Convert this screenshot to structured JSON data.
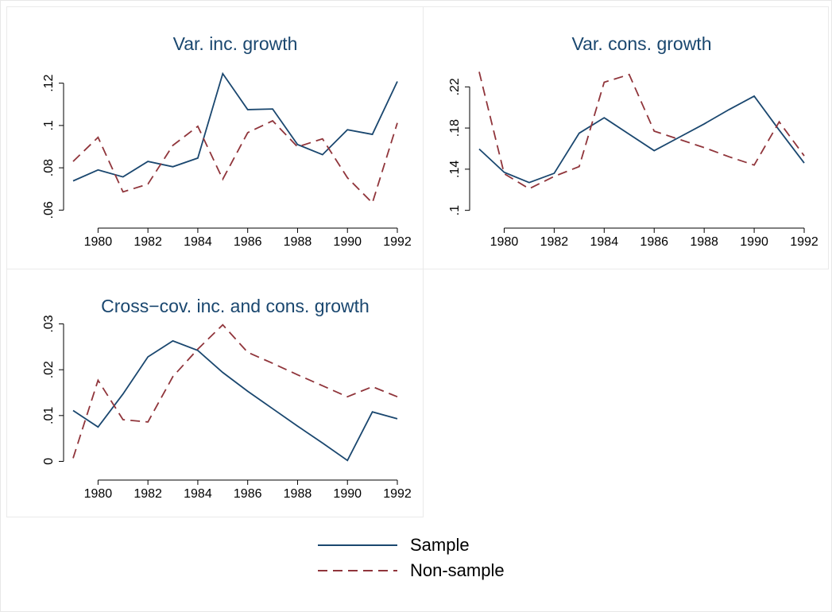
{
  "chart_data": [
    {
      "type": "line",
      "title": "Var. inc. growth",
      "x": [
        1979,
        1980,
        1981,
        1982,
        1983,
        1984,
        1985,
        1986,
        1987,
        1988,
        1989,
        1990,
        1991,
        1992
      ],
      "xlim": [
        1979,
        1992
      ],
      "xticks": [
        1980,
        1982,
        1984,
        1986,
        1988,
        1990,
        1992
      ],
      "ylim": [
        0.056,
        0.127
      ],
      "yticks": [
        {
          "value": 0.06,
          "label": ".06"
        },
        {
          "value": 0.08,
          "label": ".08"
        },
        {
          "value": 0.1,
          "label": ".1"
        },
        {
          "value": 0.12,
          "label": ".12"
        }
      ],
      "series": [
        {
          "name": "Sample",
          "color": "#1a476f",
          "values": [
            0.0738,
            0.079,
            0.0757,
            0.083,
            0.0805,
            0.0846,
            0.1245,
            0.1075,
            0.1078,
            0.091,
            0.0862,
            0.098,
            0.0958,
            0.1208
          ]
        },
        {
          "name": "Non-sample",
          "color": "#90353b",
          "values": [
            0.083,
            0.0944,
            0.0686,
            0.0723,
            0.0906,
            0.0996,
            0.0746,
            0.0966,
            0.1022,
            0.0899,
            0.0937,
            0.0753,
            0.0634,
            0.1012
          ]
        }
      ]
    },
    {
      "type": "line",
      "title": "Var. cons. growth",
      "x": [
        1979,
        1980,
        1981,
        1982,
        1983,
        1984,
        1985,
        1986,
        1987,
        1988,
        1989,
        1990,
        1991,
        1992
      ],
      "xlim": [
        1979,
        1992
      ],
      "xticks": [
        1980,
        1982,
        1984,
        1986,
        1988,
        1990,
        1992
      ],
      "ylim": [
        0.092,
        0.238
      ],
      "yticks": [
        {
          "value": 0.1,
          "label": ".1"
        },
        {
          "value": 0.14,
          "label": ".14"
        },
        {
          "value": 0.18,
          "label": ".18"
        },
        {
          "value": 0.22,
          "label": ".22"
        }
      ],
      "series": [
        {
          "color": "#1a476f",
          "values": [
            0.1596,
            0.137,
            0.127,
            0.136,
            0.175,
            0.19,
            0.174,
            0.158,
            0.171,
            0.184,
            0.198,
            0.211,
            0.178,
            0.146
          ]
        },
        {
          "color": "#90353b",
          "values": [
            0.2346,
            0.1356,
            0.121,
            0.133,
            0.1425,
            0.2245,
            0.232,
            0.177,
            0.169,
            0.161,
            0.152,
            0.144,
            0.186,
            0.153
          ]
        }
      ]
    },
    {
      "type": "line",
      "title": "Cross−cov. inc. and cons. growth",
      "x": [
        1979,
        1980,
        1981,
        1982,
        1983,
        1984,
        1985,
        1986,
        1987,
        1988,
        1989,
        1990,
        1991,
        1992
      ],
      "xlim": [
        1979,
        1992
      ],
      "xticks": [
        1980,
        1982,
        1984,
        1986,
        1988,
        1990,
        1992
      ],
      "ylim": [
        -0.002,
        0.032
      ],
      "yticks": [
        0,
        {
          "value": 0.01,
          "label": ".01"
        },
        {
          "value": 0.02,
          "label": ".02"
        },
        {
          "value": 0.03,
          "label": ".03"
        }
      ],
      "series": [
        {
          "color": "#1a476f",
          "values": [
            0.0111,
            0.0075,
            0.0147,
            0.0228,
            0.0263,
            0.0242,
            0.0194,
            0.0153,
            0.0115,
            0.0077,
            0.004,
            0.0002,
            0.0108,
            0.0093
          ]
        },
        {
          "color": "#90353b",
          "values": [
            0.0007,
            0.0177,
            0.0091,
            0.0086,
            0.0185,
            0.0245,
            0.0298,
            0.0238,
            0.0214,
            0.0189,
            0.0165,
            0.0141,
            0.0163,
            0.0141
          ]
        }
      ]
    }
  ]
}
